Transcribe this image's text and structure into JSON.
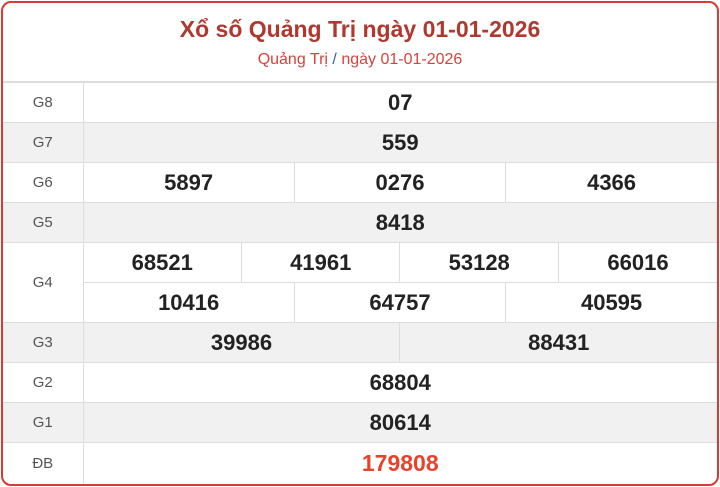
{
  "header": {
    "title": "Xổ số Quảng Trị ngày 01-01-2026",
    "breadcrumb_province": "Quảng Trị",
    "breadcrumb_sep": "/",
    "breadcrumb_date": "ngày 01-01-2026"
  },
  "prizes": {
    "g8": {
      "label": "G8",
      "numbers": [
        "07"
      ]
    },
    "g7": {
      "label": "G7",
      "numbers": [
        "559"
      ]
    },
    "g6": {
      "label": "G6",
      "numbers": [
        "5897",
        "0276",
        "4366"
      ]
    },
    "g5": {
      "label": "G5",
      "numbers": [
        "8418"
      ]
    },
    "g4": {
      "label": "G4",
      "numbers": [
        "68521",
        "41961",
        "53128",
        "66016",
        "10416",
        "64757",
        "40595"
      ]
    },
    "g3": {
      "label": "G3",
      "numbers": [
        "39986",
        "88431"
      ]
    },
    "g2": {
      "label": "G2",
      "numbers": [
        "68804"
      ]
    },
    "g1": {
      "label": "G1",
      "numbers": [
        "80614"
      ]
    },
    "db": {
      "label": "ĐB",
      "numbers": [
        "179808"
      ]
    }
  },
  "colors": {
    "accent": "#d93a35",
    "special": "#e8422c",
    "title": "#b0392f"
  }
}
